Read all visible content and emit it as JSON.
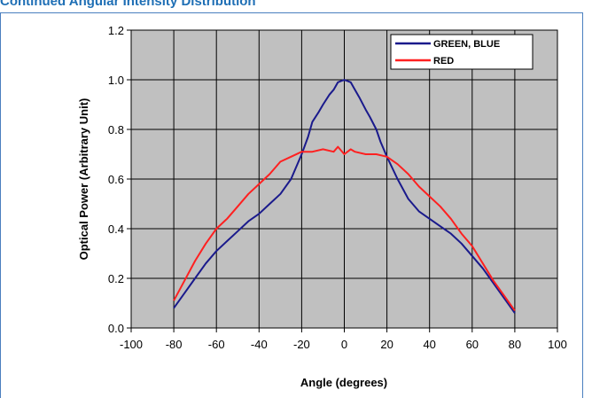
{
  "page": {
    "heading": "Continued Angular Intensity Distribution"
  },
  "chart_data": {
    "type": "line",
    "title": "",
    "xlabel": "Angle (degrees)",
    "ylabel": "Optical Power (Arbitrary Unit)",
    "xlim": [
      -100,
      100
    ],
    "ylim": [
      0,
      1.2
    ],
    "xticks": [
      -100,
      -80,
      -60,
      -40,
      -20,
      0,
      20,
      40,
      60,
      80,
      100
    ],
    "yticks": [
      0.0,
      0.2,
      0.4,
      0.6,
      0.8,
      1.0,
      1.2
    ],
    "xtick_labels": [
      "-100",
      "-80",
      "-60",
      "-40",
      "-20",
      "0",
      "20",
      "40",
      "60",
      "80",
      "100"
    ],
    "ytick_labels": [
      "0.0",
      "0.2",
      "0.4",
      "0.6",
      "0.8",
      "1.0",
      "1.2"
    ],
    "grid": true,
    "plot_background": "#c0c0c0",
    "legend_position": "top-right",
    "series": [
      {
        "name": "GREEN, BLUE",
        "color": "#1a1a8c",
        "x": [
          -80,
          -75,
          -70,
          -65,
          -60,
          -55,
          -50,
          -45,
          -40,
          -35,
          -30,
          -25,
          -20,
          -17,
          -15,
          -12,
          -10,
          -7,
          -5,
          -3,
          0,
          3,
          5,
          7,
          10,
          12,
          15,
          17,
          20,
          25,
          30,
          35,
          40,
          45,
          50,
          55,
          60,
          65,
          70,
          75,
          80
        ],
        "y": [
          0.08,
          0.14,
          0.2,
          0.26,
          0.31,
          0.35,
          0.39,
          0.43,
          0.46,
          0.5,
          0.54,
          0.6,
          0.7,
          0.77,
          0.83,
          0.87,
          0.9,
          0.94,
          0.96,
          0.99,
          1.0,
          0.99,
          0.96,
          0.93,
          0.88,
          0.85,
          0.8,
          0.75,
          0.69,
          0.6,
          0.52,
          0.47,
          0.44,
          0.41,
          0.38,
          0.34,
          0.29,
          0.24,
          0.18,
          0.12,
          0.06
        ]
      },
      {
        "name": "RED",
        "color": "#ff2020",
        "x": [
          -80,
          -75,
          -70,
          -65,
          -60,
          -55,
          -50,
          -45,
          -40,
          -35,
          -30,
          -25,
          -20,
          -15,
          -10,
          -5,
          -3,
          0,
          3,
          5,
          10,
          15,
          20,
          25,
          30,
          35,
          40,
          45,
          50,
          55,
          60,
          65,
          70,
          75,
          80
        ],
        "y": [
          0.11,
          0.19,
          0.27,
          0.34,
          0.4,
          0.44,
          0.49,
          0.54,
          0.58,
          0.62,
          0.67,
          0.69,
          0.71,
          0.71,
          0.72,
          0.71,
          0.73,
          0.7,
          0.72,
          0.71,
          0.7,
          0.7,
          0.69,
          0.66,
          0.62,
          0.57,
          0.53,
          0.49,
          0.44,
          0.38,
          0.33,
          0.26,
          0.19,
          0.13,
          0.07
        ]
      }
    ]
  }
}
